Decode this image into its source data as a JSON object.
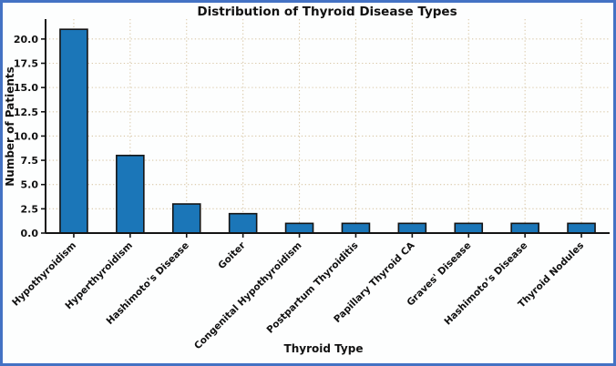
{
  "window": {
    "border_color": "#4472c4",
    "background_color": "#fdfefe"
  },
  "chart_data": {
    "type": "bar",
    "title": "Distribution of Thyroid Disease Types",
    "xlabel": "Thyroid Type",
    "ylabel": "Number of Patients",
    "categories": [
      "Hypothyroidism",
      "Hyperthyroidism",
      "Hashimoto's Disease",
      "Goiter",
      "Congenital Hypothyroidism",
      "Postpartum Thyroiditis",
      "Papillary Thyroid CA",
      "Graves' Disease",
      "Hashimoto’s Disease",
      "Thyroid Nodules"
    ],
    "values": [
      21,
      8,
      3,
      2,
      1,
      1,
      1,
      1,
      1,
      1
    ],
    "ylim": [
      0,
      22.05
    ],
    "yticks": [
      0.0,
      2.5,
      5.0,
      7.5,
      10.0,
      12.5,
      15.0,
      17.5,
      20.0
    ],
    "ytick_labels": [
      "0.0",
      "2.5",
      "5.0",
      "7.5",
      "10.0",
      "12.5",
      "15.0",
      "17.5",
      "20.0"
    ],
    "x_tick_rotation": 45,
    "grid": true,
    "grid_style": "dotted",
    "legend": "none",
    "bar_color": "#1b76b8",
    "bar_edge_color": "#141414",
    "grid_color": "#d9c8a8",
    "spine_color": "#141414"
  }
}
